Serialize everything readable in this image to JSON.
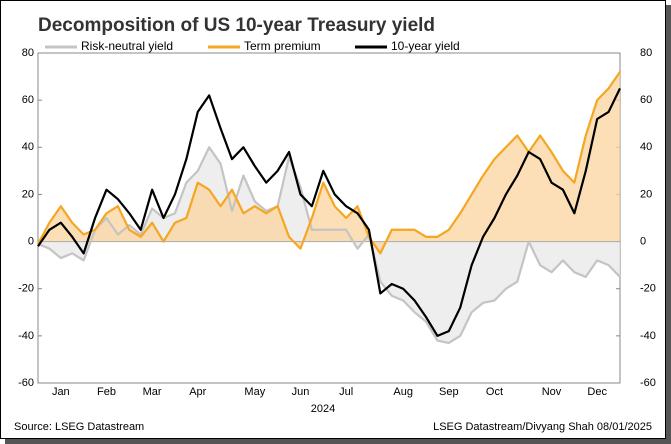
{
  "chart_data": {
    "type": "line",
    "title": "Decomposition of US 10-year Treasury yield",
    "x_label": "2024",
    "source": "Source: LSEG Datastream",
    "credit": "LSEG Datastream/Divyang Shah 08/01/2025",
    "categories": [
      null,
      null,
      "Jan",
      null,
      null,
      null,
      "Feb",
      null,
      null,
      null,
      "Mar",
      null,
      null,
      null,
      "Apr",
      null,
      null,
      null,
      null,
      "May",
      null,
      null,
      null,
      "Jun",
      null,
      null,
      null,
      "Jul",
      null,
      null,
      null,
      null,
      "Aug",
      null,
      null,
      null,
      "Sep",
      null,
      null,
      null,
      "Oct",
      null,
      null,
      null,
      null,
      "Nov",
      null,
      null,
      null,
      "Dec",
      null,
      null
    ],
    "series": [
      {
        "name": "Risk-neutral yield",
        "color": "#c4c4c4",
        "area_color": "#e8e8e8",
        "values": [
          -1,
          -3,
          -7,
          -5,
          -8,
          5,
          10,
          3,
          7,
          3,
          14,
          10,
          12,
          25,
          30,
          40,
          33,
          13,
          28,
          17,
          13,
          15,
          36,
          23,
          5,
          5,
          5,
          5,
          -3,
          3,
          -17,
          -23,
          -25,
          -30,
          -34,
          -42,
          -43,
          -40,
          -30,
          -26,
          -25,
          -20,
          -17,
          0,
          -10,
          -13,
          -8,
          -13,
          -15,
          -8,
          -10,
          -15
        ]
      },
      {
        "name": "Term premium",
        "color": "#f5a623",
        "area_color": "#fbd49d",
        "values": [
          -1,
          8,
          15,
          8,
          3,
          5,
          12,
          15,
          5,
          2,
          8,
          0,
          8,
          10,
          25,
          22,
          15,
          22,
          12,
          15,
          12,
          15,
          2,
          -3,
          10,
          25,
          15,
          10,
          15,
          2,
          -5,
          5,
          5,
          5,
          2,
          2,
          5,
          12,
          20,
          28,
          35,
          40,
          45,
          38,
          45,
          38,
          30,
          25,
          45,
          60,
          65,
          72
        ]
      },
      {
        "name": "10-year yield",
        "color": "#000000",
        "values": [
          -2,
          5,
          8,
          2,
          -5,
          10,
          22,
          18,
          12,
          5,
          22,
          10,
          20,
          35,
          55,
          62,
          48,
          35,
          40,
          32,
          25,
          30,
          38,
          20,
          15,
          30,
          20,
          15,
          12,
          5,
          -22,
          -18,
          -20,
          -25,
          -32,
          -40,
          -38,
          -28,
          -10,
          2,
          10,
          20,
          28,
          38,
          35,
          25,
          22,
          12,
          30,
          52,
          55,
          65
        ]
      }
    ],
    "ylim": [
      -60,
      80
    ],
    "yticks": [
      -60,
      -40,
      -20,
      0,
      20,
      40,
      60,
      80
    ],
    "y2lim": [
      -60,
      80
    ],
    "y2ticks": [
      -60,
      -40,
      -20,
      0,
      20,
      40,
      60,
      80
    ]
  }
}
